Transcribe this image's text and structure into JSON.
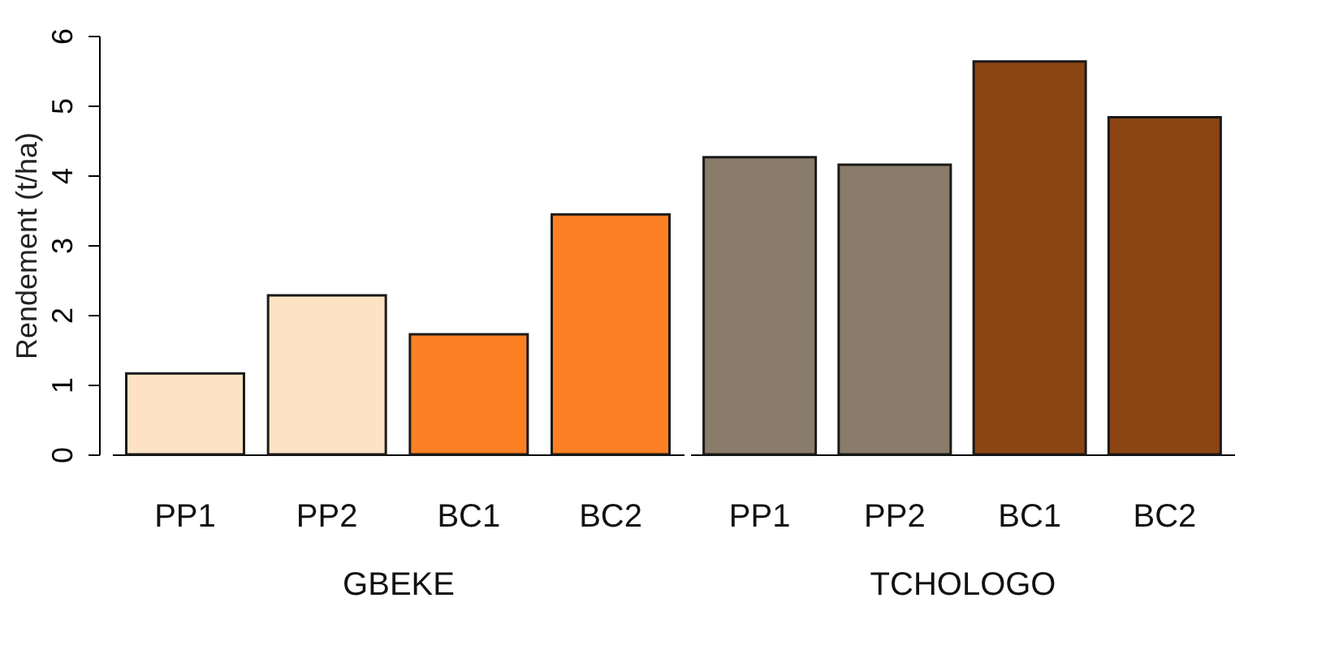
{
  "chart_data": [
    {
      "type": "bar",
      "categories": [
        "PP1",
        "PP2",
        "BC1",
        "BC2"
      ],
      "values": [
        1.16,
        2.28,
        1.72,
        3.44
      ],
      "colors": [
        "#fde3c3",
        "#fde3c3",
        "#fd7f23",
        "#fd7f23"
      ],
      "xlabel": "GBEKE",
      "ylabel": "Rendement (t/ha)",
      "ylim": [
        0,
        6
      ],
      "yticks": [
        0,
        1,
        2,
        3,
        4,
        5,
        6
      ],
      "grid": false,
      "legend": false
    },
    {
      "type": "bar",
      "categories": [
        "PP1",
        "PP2",
        "BC1",
        "BC2"
      ],
      "values": [
        4.26,
        4.15,
        5.63,
        4.83
      ],
      "colors": [
        "#8a7c6a",
        "#8a7c6a",
        "#8b4513",
        "#8b4513"
      ],
      "xlabel": "TCHOLOGO",
      "ylim": [
        0,
        6
      ],
      "yticks": [
        0,
        1,
        2,
        3,
        4,
        5,
        6
      ],
      "tick_labels": "x",
      "grid": false,
      "legend": false
    }
  ]
}
